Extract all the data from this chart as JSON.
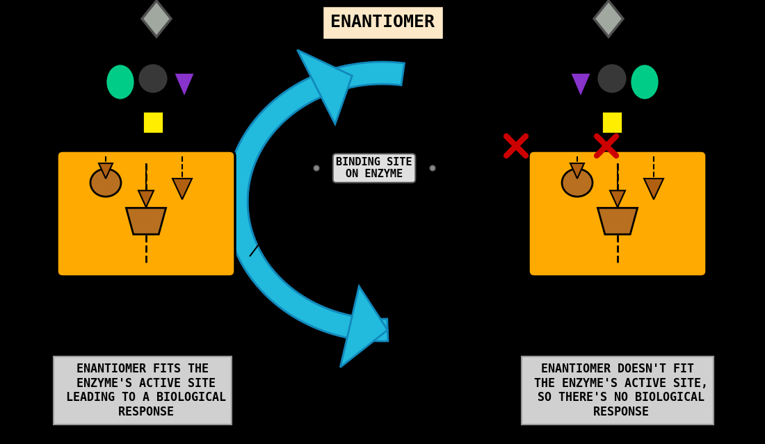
{
  "bg_color": "#000000",
  "title": "ENANTIOMER",
  "title_bg": "#fde9c8",
  "title_fontsize": 18,
  "binding_site_label": "BINDING SITE\nON ENZYME",
  "left_caption": "ENANTIOMER FITS THE\n ENZYME'S ACTIVE SITE\n LEADING TO A BIOLOGICAL\n RESPONSE",
  "right_caption": "ENANTIOMER DOESN'T FIT\n THE ENZYME'S ACTIVE SITE,\n SO THERE'S NO BIOLOGICAL\n RESPONSE",
  "caption_bg": "#d0d0d0",
  "caption_fontsize": 12,
  "enzyme_color": "#ffaa00",
  "enzyme_pocket_color": "#b87020",
  "gray_diamond_color": "#a0a8a0",
  "gray_diamond_outline": "#505050",
  "dark_circle_color": "#383838",
  "teal_ellipse_color": "#00cc88",
  "purple_triangle_color": "#8833cc",
  "yellow_square_color": "#ffee00",
  "red_x_color": "#cc0000",
  "blue_arrow_color": "#22bbdd",
  "blue_arrow_dark": "#1188bb",
  "dashed_line_color": "#000000",
  "small_arrow_color": "#b06010"
}
